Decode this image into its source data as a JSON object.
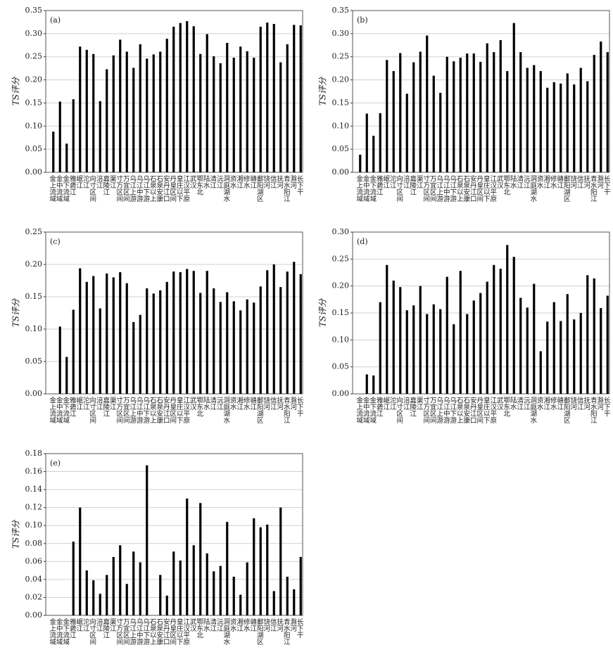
{
  "chart_data": [
    {
      "type": "bar",
      "title": "(a)",
      "ylabel": "TS评分",
      "categories": [
        "金上流域",
        "金中流域",
        "金下流域",
        "雅砻江",
        "岷江",
        "沱江",
        "向寸区间",
        "涪江",
        "嘉陵江",
        "渠江",
        "寸万区间",
        "万宜区间",
        "乌江上游",
        "乌江中游",
        "乌江下游",
        "石泉以上",
        "石泉安康",
        "安丹江口",
        "丹皇区间",
        "皇庄以下",
        "江汉平原",
        "武汉",
        "鄂东北",
        "陆水",
        "清江",
        "沅江",
        "洞庭湖水",
        "资水",
        "湘江",
        "修水",
        "赣江",
        "鄱阳湖区",
        "饶河",
        "信江",
        "抚河",
        "青水阳江",
        "滁河",
        "长下干"
      ],
      "values": [
        0.088,
        0.153,
        0.062,
        0.158,
        0.272,
        0.265,
        0.256,
        0.154,
        0.223,
        0.253,
        0.287,
        0.261,
        0.226,
        0.277,
        0.246,
        0.255,
        0.261,
        0.289,
        0.315,
        0.323,
        0.327,
        0.316,
        0.256,
        0.299,
        0.251,
        0.236,
        0.28,
        0.248,
        0.272,
        0.262,
        0.248,
        0.315,
        0.324,
        0.321,
        0.238,
        0.277,
        0.319,
        0.318
      ],
      "color": "#000000",
      "ylim": [
        0,
        0.35
      ],
      "yticks": [
        {
          "value": 0,
          "label": "0.00"
        },
        {
          "value": 0.05,
          "label": "0.05"
        },
        {
          "value": 0.1,
          "label": "0.10"
        },
        {
          "value": 0.15,
          "label": "0.15"
        },
        {
          "value": 0.2,
          "label": "0.20"
        },
        {
          "value": 0.25,
          "label": "0.25"
        },
        {
          "value": 0.3,
          "label": "0.30"
        },
        {
          "value": 0.35,
          "label": "0.35"
        }
      ],
      "grid": true
    },
    {
      "type": "bar",
      "title": "(b)",
      "ylabel": "TS评分",
      "categories": [
        "金上流域",
        "金中流域",
        "金下流域",
        "雅砻江",
        "岷江",
        "沱江",
        "向寸区间",
        "涪江",
        "嘉陵江",
        "渠江",
        "寸万区间",
        "万宜区间",
        "乌江上游",
        "乌江中游",
        "乌江下游",
        "石泉以上",
        "石泉安康",
        "安丹江口",
        "丹皇区间",
        "皇庄以下",
        "江汉平原",
        "武汉",
        "鄂东北",
        "陆水",
        "清江",
        "沅江",
        "洞庭湖水",
        "资水",
        "湘江",
        "修水",
        "赣江",
        "鄱阳湖区",
        "饶河",
        "信江",
        "抚河",
        "青水阳江",
        "滁河",
        "长下干"
      ],
      "values": [
        0.038,
        0.127,
        0.079,
        0.128,
        0.243,
        0.219,
        0.258,
        0.17,
        0.238,
        0.261,
        0.296,
        0.209,
        0.172,
        0.25,
        0.24,
        0.248,
        0.257,
        0.257,
        0.239,
        0.279,
        0.26,
        0.286,
        0.219,
        0.323,
        0.26,
        0.226,
        0.232,
        0.219,
        0.183,
        0.195,
        0.192,
        0.214,
        0.19,
        0.226,
        0.197,
        0.254,
        0.283,
        0.26
      ],
      "color": "#000000",
      "ylim": [
        0,
        0.35
      ],
      "yticks": [
        {
          "value": 0,
          "label": "0.00"
        },
        {
          "value": 0.05,
          "label": "0.05"
        },
        {
          "value": 0.1,
          "label": "0.10"
        },
        {
          "value": 0.15,
          "label": "0.15"
        },
        {
          "value": 0.2,
          "label": "0.20"
        },
        {
          "value": 0.25,
          "label": "0.25"
        },
        {
          "value": 0.3,
          "label": "0.30"
        },
        {
          "value": 0.35,
          "label": "0.35"
        }
      ],
      "grid": true
    },
    {
      "type": "bar",
      "title": "(c)",
      "ylabel": "TS评分",
      "categories": [
        "金上流域",
        "金中流域",
        "金下流域",
        "雅砻江",
        "岷江",
        "沱江",
        "向寸区间",
        "涪江",
        "嘉陵江",
        "渠江",
        "寸万区间",
        "万宜区间",
        "乌江上游",
        "乌江中游",
        "乌江下游",
        "石泉以上",
        "石泉安康",
        "安丹江口",
        "丹皇区间",
        "皇庄以下",
        "江汉平原",
        "武汉",
        "鄂东北",
        "陆水",
        "清江",
        "沅江",
        "洞庭湖水",
        "资水",
        "湘江",
        "修水",
        "赣江",
        "鄱阳湖区",
        "饶河",
        "信江",
        "抚河",
        "青水阳江",
        "滁河",
        "长下干"
      ],
      "values": [
        0,
        0.104,
        0.057,
        0.13,
        0.194,
        0.173,
        0.182,
        0.132,
        0.186,
        0.18,
        0.188,
        0.171,
        0.111,
        0.122,
        0.163,
        0.155,
        0.16,
        0.173,
        0.189,
        0.188,
        0.193,
        0.19,
        0.156,
        0.19,
        0.163,
        0.142,
        0.157,
        0.143,
        0.129,
        0.146,
        0.141,
        0.166,
        0.191,
        0.2,
        0.165,
        0.189,
        0.204,
        0.185
      ],
      "color": "#000000",
      "ylim": [
        0,
        0.25
      ],
      "yticks": [
        {
          "value": 0,
          "label": "0.00"
        },
        {
          "value": 0.05,
          "label": "0.05"
        },
        {
          "value": 0.1,
          "label": "0.10"
        },
        {
          "value": 0.15,
          "label": "0.15"
        },
        {
          "value": 0.2,
          "label": "0.20"
        },
        {
          "value": 0.25,
          "label": "0.25"
        }
      ],
      "grid": true
    },
    {
      "type": "bar",
      "title": "(d)",
      "ylabel": "TS评分",
      "categories": [
        "金上流域",
        "金中流域",
        "金下流域",
        "雅砻江",
        "岷江",
        "沱江",
        "向寸区间",
        "涪江",
        "嘉陵江",
        "渠江",
        "寸万区间",
        "万宜区间",
        "乌江上游",
        "乌江中游",
        "乌江下游",
        "石泉以上",
        "石泉安康",
        "安丹江口",
        "丹皇区间",
        "皇庄以下",
        "江汉平原",
        "武汉",
        "鄂东北",
        "陆水",
        "清江",
        "沅江",
        "洞庭湖水",
        "资水",
        "湘江",
        "修水",
        "赣江",
        "鄱阳湖区",
        "饶河",
        "信江",
        "抚河",
        "青水阳江",
        "滁河",
        "长下干"
      ],
      "values": [
        0,
        0.036,
        0.034,
        0.17,
        0.239,
        0.21,
        0.198,
        0.155,
        0.164,
        0.2,
        0.148,
        0.166,
        0.157,
        0.217,
        0.129,
        0.228,
        0.148,
        0.173,
        0.187,
        0.208,
        0.239,
        0.232,
        0.276,
        0.254,
        0.178,
        0.16,
        0.204,
        0.079,
        0.134,
        0.17,
        0.135,
        0.185,
        0.138,
        0.15,
        0.22,
        0.214,
        0.159,
        0.182
      ],
      "color": "#000000",
      "ylim": [
        0,
        0.3
      ],
      "yticks": [
        {
          "value": 0,
          "label": "0.00"
        },
        {
          "value": 0.05,
          "label": "0.05"
        },
        {
          "value": 0.1,
          "label": "0.10"
        },
        {
          "value": 0.15,
          "label": "0.15"
        },
        {
          "value": 0.2,
          "label": "0.20"
        },
        {
          "value": 0.25,
          "label": "0.25"
        },
        {
          "value": 0.3,
          "label": "0.30"
        }
      ],
      "grid": true
    },
    {
      "type": "bar",
      "title": "(e)",
      "ylabel": "TS评分",
      "categories": [
        "金上流域",
        "金中流域",
        "金下流域",
        "雅砻江",
        "岷江",
        "沱江",
        "向寸区间",
        "涪江",
        "嘉陵江",
        "渠江",
        "寸万区间",
        "万宜区间",
        "乌江上游",
        "乌江中游",
        "乌江下游",
        "石泉以上",
        "石泉安康",
        "安丹江口",
        "丹皇区间",
        "皇庄以下",
        "江汉平原",
        "武汉",
        "鄂东北",
        "陆水",
        "清江",
        "沅江",
        "洞庭湖水",
        "资水",
        "湘江",
        "修水",
        "赣江",
        "鄱阳湖区",
        "饶河",
        "信江",
        "抚河",
        "青水阳江",
        "滁河",
        "长下干"
      ],
      "values": [
        0,
        0,
        0,
        0.082,
        0.12,
        0.05,
        0.039,
        0.024,
        0.045,
        0.065,
        0.078,
        0.035,
        0.071,
        0.059,
        0.167,
        0,
        0.045,
        0.022,
        0.071,
        0.061,
        0.13,
        0.078,
        0.125,
        0.069,
        0.049,
        0.055,
        0.104,
        0.043,
        0.023,
        0.059,
        0.108,
        0.098,
        0.101,
        0.027,
        0.12,
        0.043,
        0.029,
        0.065
      ],
      "color": "#000000",
      "ylim": [
        0,
        0.18
      ],
      "yticks": [
        {
          "value": 0,
          "label": "0.00"
        },
        {
          "value": 0.02,
          "label": "0.02"
        },
        {
          "value": 0.04,
          "label": "0.04"
        },
        {
          "value": 0.06,
          "label": "0.06"
        },
        {
          "value": 0.08,
          "label": "0.08"
        },
        {
          "value": 0.1,
          "label": "0.10"
        },
        {
          "value": 0.12,
          "label": "0.12"
        },
        {
          "value": 0.14,
          "label": "0.14"
        },
        {
          "value": 0.16,
          "label": "0.16"
        },
        {
          "value": 0.18,
          "label": "0.18"
        }
      ],
      "grid": true
    }
  ]
}
